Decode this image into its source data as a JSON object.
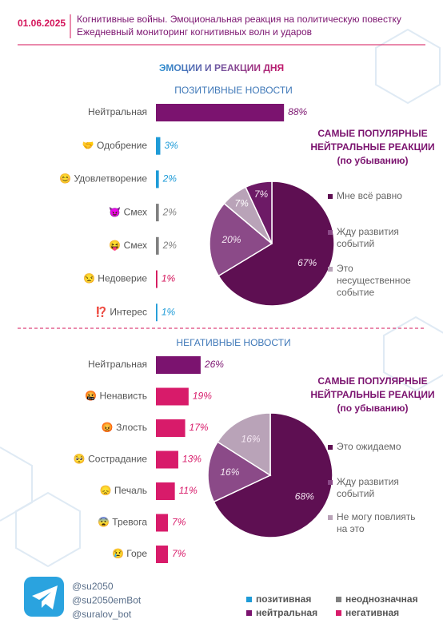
{
  "header": {
    "date": "01.06.2025",
    "subtitle": [
      "Когнитивные войны. Эмоциональная реакция на политическую повестку",
      "Ежедневный мониторинг когнитивных волн и ударов"
    ]
  },
  "title": "ЭМОЦИИ И РЕАКЦИИ ДНЯ",
  "chart_data": [
    {
      "type": "bar",
      "orientation": "horizontal",
      "title": "ПОЗИТИВНЫЕ НОВОСТИ",
      "categories": [
        "Нейтральная",
        "🤝 Одобрение",
        "😊 Удовлетворение",
        "😈 Смех",
        "😝 Смех",
        "😒 Недоверие",
        "⁉️ Интерес"
      ],
      "values": [
        88,
        3,
        2,
        2,
        2,
        1,
        1
      ],
      "value_labels": [
        "88%",
        "3%",
        "2%",
        "2%",
        "2%",
        "1%",
        "1%"
      ],
      "colors": [
        "#7b136f",
        "#1e9bd7",
        "#1e9bd7",
        "#808080",
        "#808080",
        "#d4145a",
        "#1e9bd7"
      ]
    },
    {
      "type": "pie",
      "title": [
        "САМЫЕ ПОПУЛЯРНЫЕ",
        "НЕЙТРАЛЬНЫЕ РЕАКЦИИ",
        "(по убыванию)"
      ],
      "categories": [
        [
          "Мне всё равно"
        ],
        [
          "Жду развития",
          "событий"
        ],
        [
          "Это",
          "несущественное",
          "событие"
        ],
        null
      ],
      "values": [
        67,
        20,
        7,
        7
      ],
      "value_labels": [
        "67%",
        "20%",
        "7%",
        "7%"
      ],
      "colors": [
        "#5e0f52",
        "#8b4a88",
        "#b9a3b8",
        "#6d1a66"
      ]
    },
    {
      "type": "bar",
      "orientation": "horizontal",
      "title": "НЕГАТИВНЫЕ НОВОСТИ",
      "categories": [
        "Нейтральная",
        "🤬 Ненависть",
        "😡 Злость",
        "🥺 Сострадание",
        "😞 Печаль",
        "😨 Тревога",
        "😢 Горе"
      ],
      "values": [
        26,
        19,
        17,
        13,
        11,
        7,
        7
      ],
      "value_labels": [
        "26%",
        "19%",
        "17%",
        "13%",
        "11%",
        "7%",
        "7%"
      ],
      "colors": [
        "#7b136f",
        "#d81b6a",
        "#d81b6a",
        "#d81b6a",
        "#d81b6a",
        "#d81b6a",
        "#d81b6a"
      ]
    },
    {
      "type": "pie",
      "title": [
        "САМЫЕ ПОПУЛЯРНЫЕ",
        "НЕЙТРАЛЬНЫЕ РЕАКЦИИ",
        "(по убыванию)"
      ],
      "categories": [
        [
          "Это ожидаемо"
        ],
        [
          "Жду развития",
          "событий"
        ],
        [
          "Не могу повлиять",
          "на это"
        ]
      ],
      "values": [
        68,
        16,
        16
      ],
      "value_labels": [
        "68%",
        "16%",
        "16%"
      ],
      "colors": [
        "#5e0f52",
        "#8b4a88",
        "#b9a3b8"
      ]
    }
  ],
  "legend": [
    {
      "name": "позитивная",
      "color": "#1e9bd7"
    },
    {
      "name": "неоднозначная",
      "color": "#808080"
    },
    {
      "name": "нейтральная",
      "color": "#7b136f"
    },
    {
      "name": "негативная",
      "color": "#d81b6a"
    }
  ],
  "handles": [
    "@su2050",
    "@su2050emBot",
    "@suralov_bot"
  ]
}
